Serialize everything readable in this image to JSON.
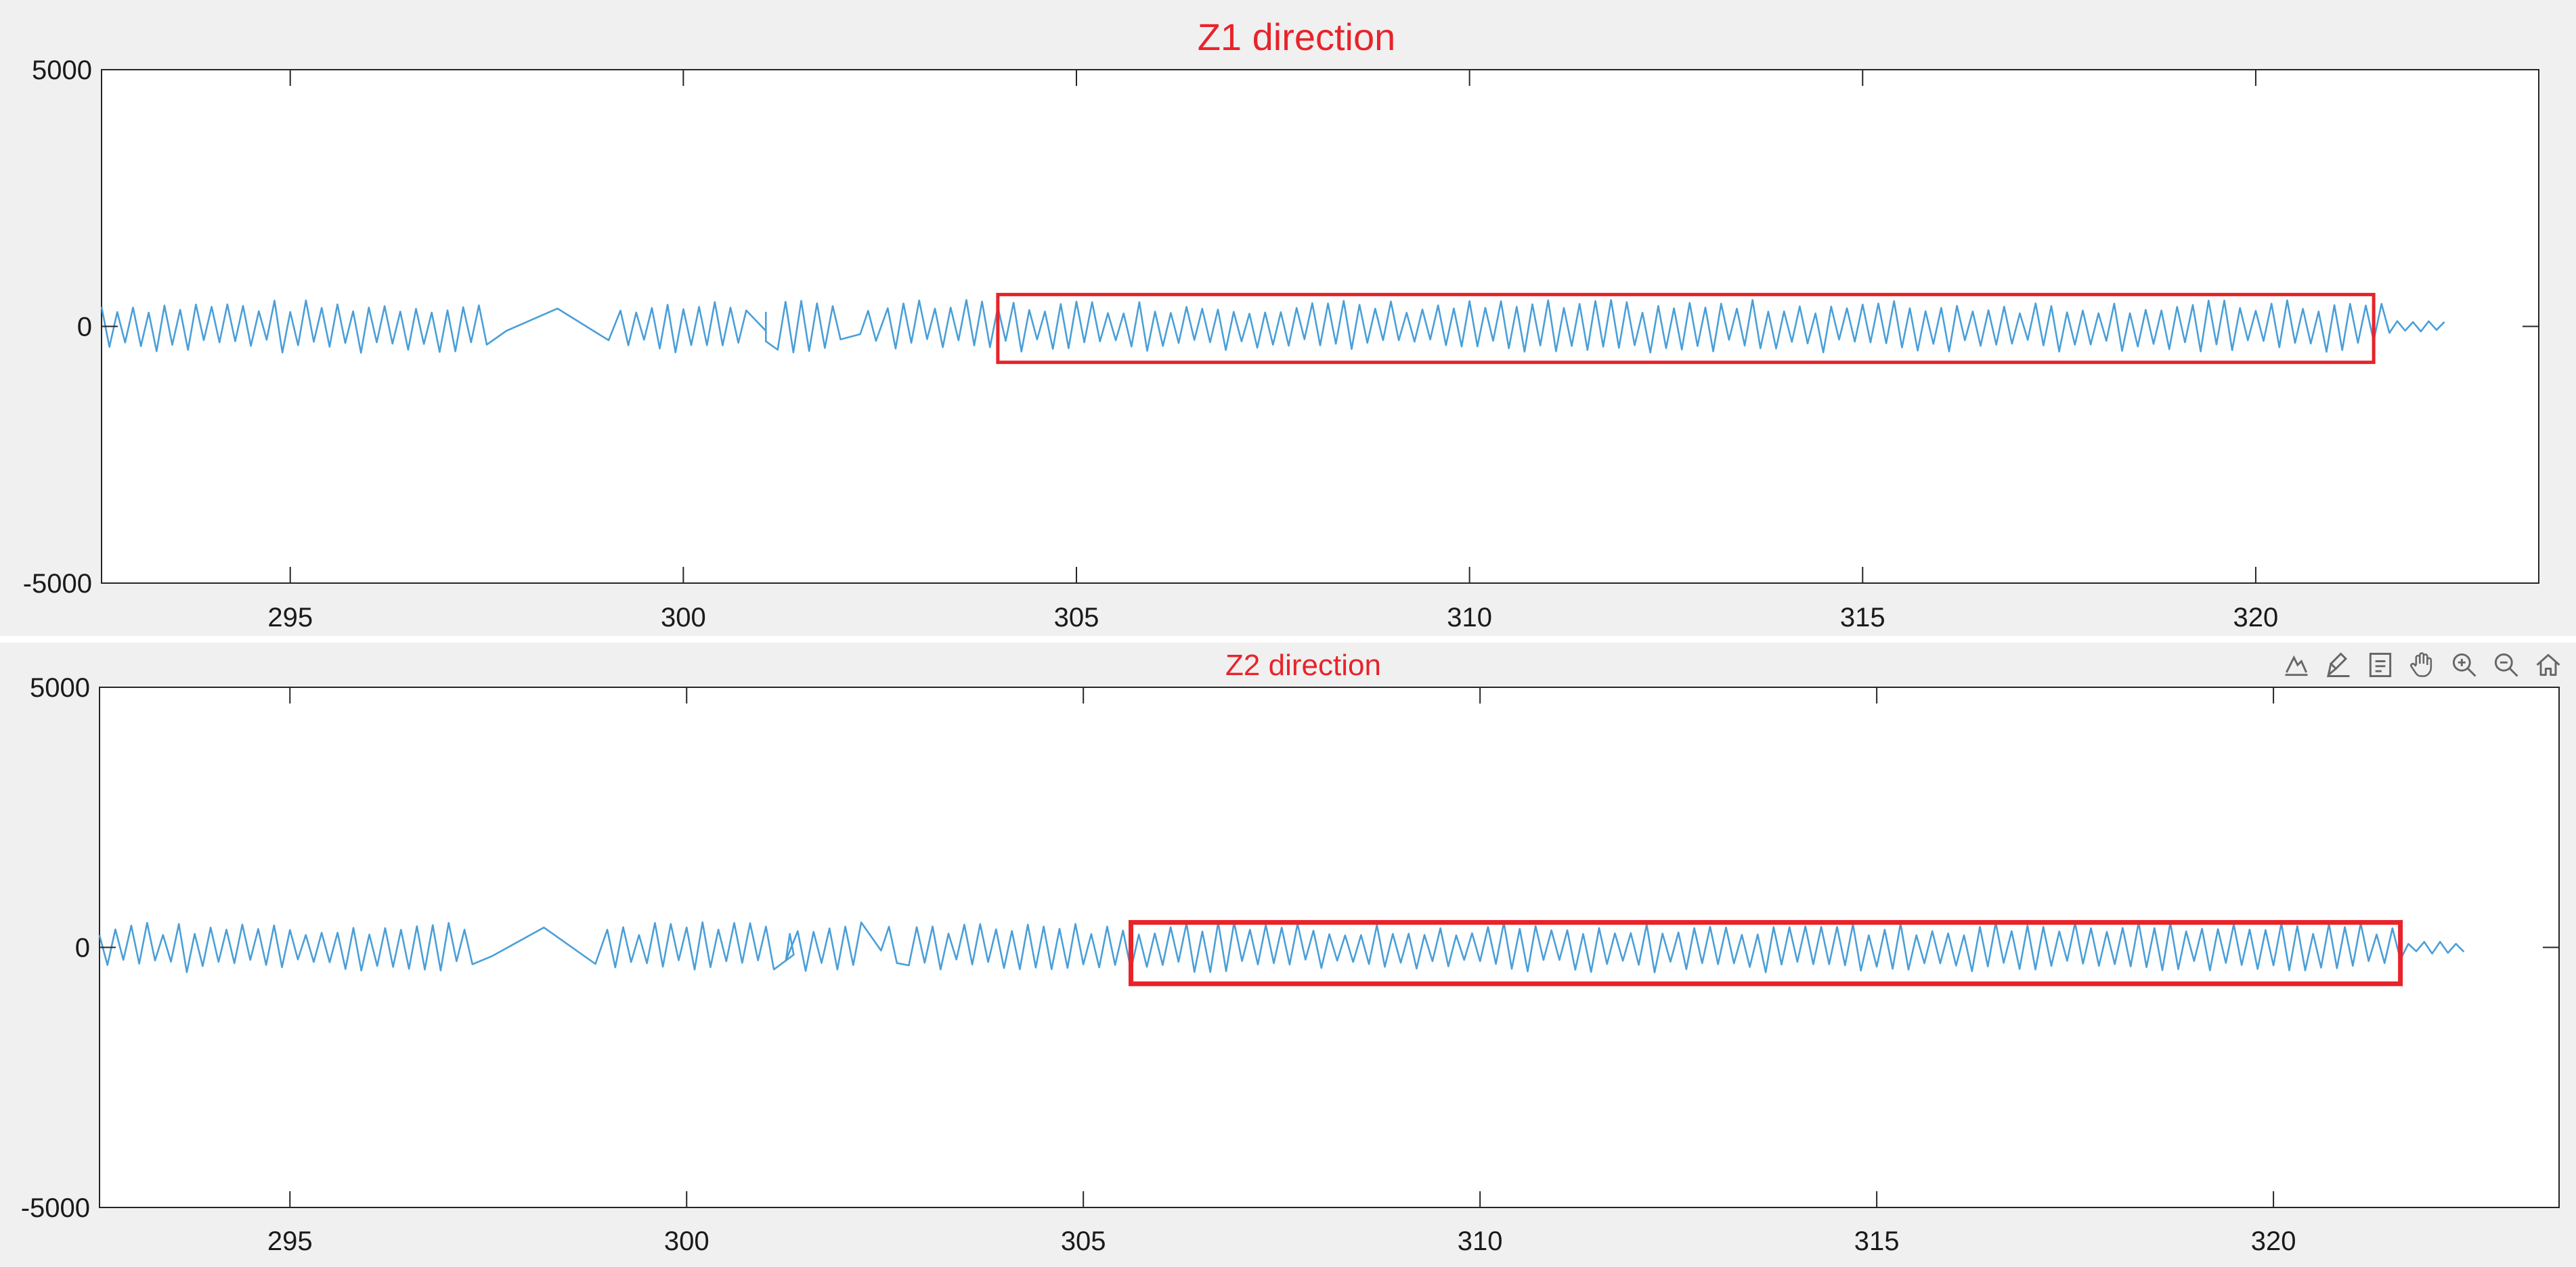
{
  "colors": {
    "signal": "#4a9fd8",
    "highlight": "#e8232a",
    "axis": "#262626",
    "panel_bg": "#f0f0f0",
    "plot_bg": "#ffffff"
  },
  "toolbar": {
    "icons": [
      "data-tips-icon",
      "brush-icon",
      "legend-icon",
      "pan-hand-icon",
      "zoom-in-icon",
      "zoom-out-icon",
      "home-icon"
    ]
  },
  "chart_data": [
    {
      "type": "line",
      "title": "Z1 direction",
      "xlabel": "",
      "ylabel": "",
      "xlim": [
        292.6,
        323.6
      ],
      "ylim": [
        -5000,
        5000
      ],
      "xticks": [
        295,
        300,
        305,
        310,
        315,
        320
      ],
      "xtick_labels": [
        "295",
        "300",
        "305",
        "310",
        "315",
        "320"
      ],
      "yticks": [
        -5000,
        0,
        5000
      ],
      "ytick_labels": [
        "-5000",
        "0",
        "5000"
      ],
      "grid": false,
      "signal": {
        "x_start": 292.6,
        "x_end": 322.5,
        "amplitude": 450,
        "gaps": [
          [
            297.6,
            299.2
          ],
          [
            300.9,
            301.2
          ],
          [
            302.1,
            302.6
          ]
        ]
      },
      "highlight_box": {
        "x": [
          304.0,
          321.5
        ],
        "y": [
          -700,
          620
        ]
      }
    },
    {
      "type": "line",
      "title": "Z2 direction",
      "xlabel": "",
      "ylabel": "",
      "xlim": [
        292.6,
        323.6
      ],
      "ylim": [
        -5000,
        5000
      ],
      "xticks": [
        295,
        300,
        305,
        310,
        315,
        320
      ],
      "xtick_labels": [
        "295",
        "300",
        "305",
        "310",
        "315",
        "320"
      ],
      "yticks": [
        -5000,
        0,
        5000
      ],
      "ytick_labels": [
        "-5000",
        "0",
        "5000"
      ],
      "grid": false,
      "signal": {
        "x_start": 292.6,
        "x_end": 322.5,
        "amplitude": 420,
        "gaps": [
          [
            297.4,
            299.0
          ],
          [
            301.2,
            301.4
          ],
          [
            302.3,
            302.8
          ]
        ]
      },
      "highlight_box": {
        "x": [
          305.6,
          321.6
        ],
        "y": [
          -700,
          480
        ]
      }
    }
  ]
}
